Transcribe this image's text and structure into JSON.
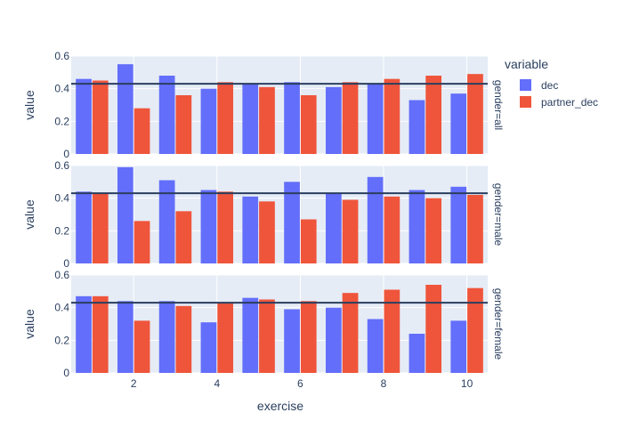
{
  "chart_data": {
    "type": "bar",
    "xlabel": "exercise",
    "ylabel": "value",
    "x": [
      1,
      2,
      3,
      4,
      5,
      6,
      7,
      8,
      9,
      10
    ],
    "x_ticks": [
      2,
      4,
      6,
      8,
      10
    ],
    "x_range": [
      0.5,
      10.5
    ],
    "y_range": [
      0,
      0.6
    ],
    "y_ticks": [
      0,
      0.2,
      0.4,
      0.6
    ],
    "legend": {
      "title": "variable",
      "placement": "top-right"
    },
    "series_meta": [
      {
        "name": "dec",
        "color": "#636efa"
      },
      {
        "name": "partner_dec",
        "color": "#ef553b"
      }
    ],
    "reference_line": {
      "y": 0.43,
      "color": "#2a3f5f"
    },
    "facets": [
      {
        "label": "gender=all",
        "series": [
          {
            "name": "dec",
            "values": [
              0.46,
              0.55,
              0.48,
              0.4,
              0.43,
              0.44,
              0.41,
              0.43,
              0.33,
              0.37
            ]
          },
          {
            "name": "partner_dec",
            "values": [
              0.45,
              0.28,
              0.36,
              0.44,
              0.41,
              0.36,
              0.44,
              0.46,
              0.48,
              0.49
            ]
          }
        ]
      },
      {
        "label": "gender=male",
        "series": [
          {
            "name": "dec",
            "values": [
              0.44,
              0.59,
              0.51,
              0.45,
              0.41,
              0.5,
              0.43,
              0.53,
              0.45,
              0.47
            ]
          },
          {
            "name": "partner_dec",
            "values": [
              0.43,
              0.26,
              0.32,
              0.44,
              0.38,
              0.27,
              0.39,
              0.41,
              0.4,
              0.42
            ]
          }
        ]
      },
      {
        "label": "gender=female",
        "series": [
          {
            "name": "dec",
            "values": [
              0.47,
              0.44,
              0.44,
              0.31,
              0.46,
              0.39,
              0.4,
              0.33,
              0.24,
              0.32
            ]
          },
          {
            "name": "partner_dec",
            "values": [
              0.47,
              0.32,
              0.41,
              0.43,
              0.45,
              0.44,
              0.49,
              0.51,
              0.54,
              0.52
            ]
          }
        ]
      }
    ]
  }
}
